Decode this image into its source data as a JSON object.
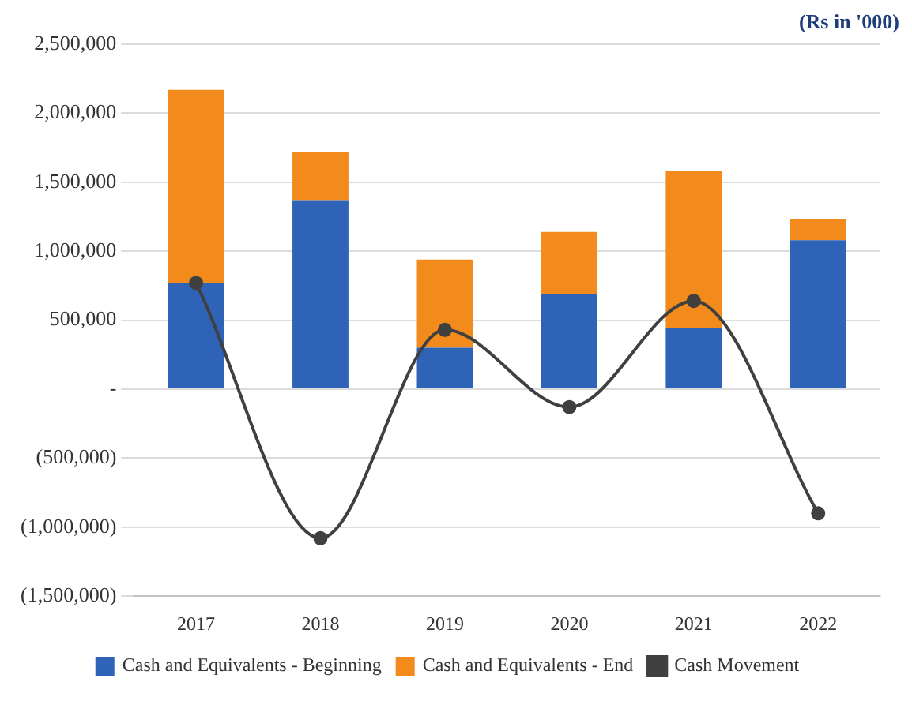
{
  "chart_data": {
    "type": "bar",
    "stacked": true,
    "categories": [
      "2017",
      "2018",
      "2019",
      "2020",
      "2021",
      "2022"
    ],
    "series": [
      {
        "name": "Cash and Equivalents - Beginning",
        "color": "#2e63b8",
        "values": [
          770000,
          1370000,
          300000,
          690000,
          440000,
          1080000
        ]
      },
      {
        "name": "Cash and Equivalents - End",
        "color": "#f28a1c",
        "values": [
          1400000,
          350000,
          640000,
          450000,
          1140000,
          150000
        ]
      },
      {
        "name": "Cash Movement",
        "type": "line",
        "color": "#404040",
        "values": [
          770000,
          -1080000,
          430000,
          -130000,
          640000,
          -900000
        ]
      }
    ],
    "ylim": [
      -1500000,
      2500000
    ],
    "yticks": [
      {
        "value": -1500000,
        "label": "(1,500,000)"
      },
      {
        "value": -1000000,
        "label": "(1,000,000)"
      },
      {
        "value": -500000,
        "label": "(500,000)"
      },
      {
        "value": 0,
        "label": "-"
      },
      {
        "value": 500000,
        "label": "500,000"
      },
      {
        "value": 1000000,
        "label": "1,000,000"
      },
      {
        "value": 1500000,
        "label": "1,500,000"
      },
      {
        "value": 2000000,
        "label": "2,000,000"
      },
      {
        "value": 2500000,
        "label": "2,500,000"
      }
    ],
    "grid": "y",
    "legend": "bottom",
    "marker": "circle",
    "line_style": "solid",
    "annotations": [
      "(Rs in '000)"
    ]
  }
}
